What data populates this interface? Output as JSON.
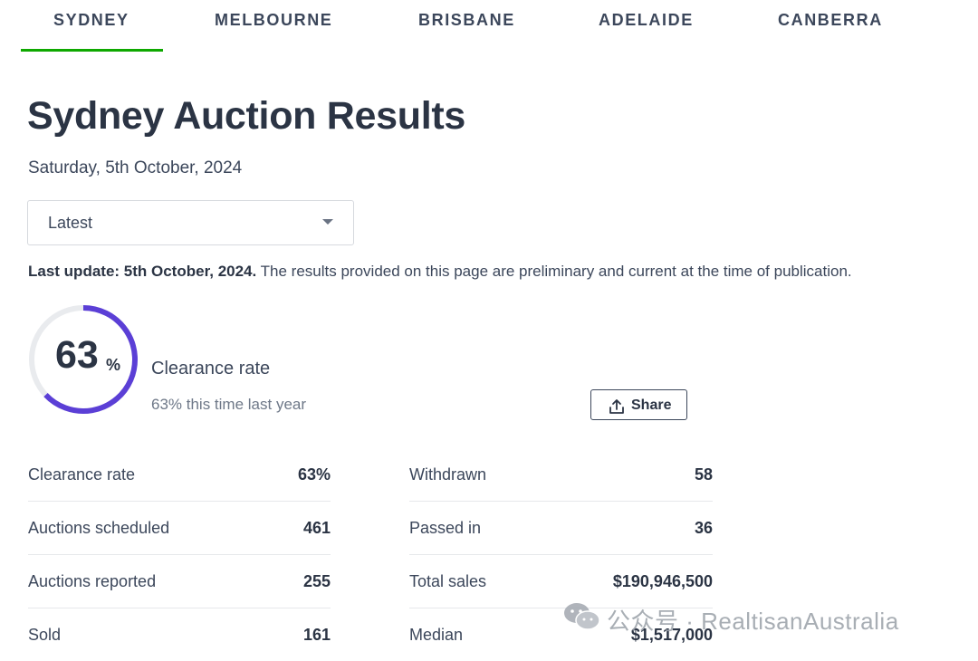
{
  "tabs": [
    {
      "label": "SYDNEY",
      "active": true
    },
    {
      "label": "MELBOURNE",
      "active": false
    },
    {
      "label": "BRISBANE",
      "active": false
    },
    {
      "label": "ADELAIDE",
      "active": false
    },
    {
      "label": "CANBERRA",
      "active": false
    }
  ],
  "colors": {
    "accent_tab": "#0ea800",
    "gauge_progress": "#5b3fd6",
    "gauge_track": "#e9ebee",
    "text": "#3c475b"
  },
  "header": {
    "title": "Sydney Auction Results",
    "date": "Saturday, 5th October, 2024"
  },
  "filter": {
    "selected": "Latest"
  },
  "update": {
    "bold": "Last update: 5th October, 2024.",
    "text": " The results provided on this page are preliminary and current at the time of publication."
  },
  "gauge": {
    "value": "63",
    "unit": "%",
    "fraction": 0.63,
    "label": "Clearance rate",
    "last_year": "63% this time last year"
  },
  "share": {
    "label": "Share",
    "icon": "share-upload-icon"
  },
  "stats_left": [
    {
      "label": "Clearance rate",
      "value": "63%"
    },
    {
      "label": "Auctions scheduled",
      "value": "461"
    },
    {
      "label": "Auctions reported",
      "value": "255"
    },
    {
      "label": "Sold",
      "value": "161"
    }
  ],
  "stats_right": [
    {
      "label": "Withdrawn",
      "value": "58"
    },
    {
      "label": "Passed in",
      "value": "36"
    },
    {
      "label": "Total sales",
      "value": "$190,946,500"
    },
    {
      "label": "Median",
      "value": "$1,517,000"
    }
  ],
  "watermark": {
    "text": "公众号 · RealtisanAustralia",
    "icon": "wechat-icon"
  }
}
